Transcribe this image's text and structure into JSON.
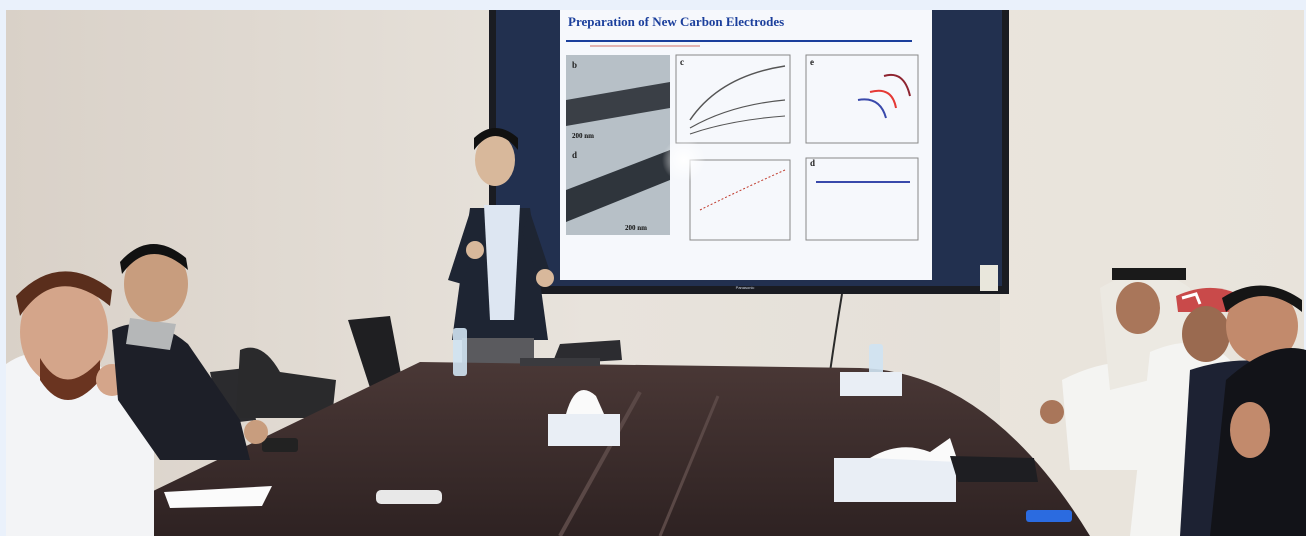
{
  "photo": {
    "slide": {
      "title": "Preparation of New Carbon Electrodes",
      "subtitle": "",
      "panel_letters": [
        "b",
        "c",
        "e",
        "d",
        "d"
      ],
      "scale_bar_1": "200 nm",
      "scale_bar_2": "200 nm",
      "annotation": ""
    },
    "screen_brand": "Panasonic",
    "colors": {
      "wall": "#e4dfd8",
      "table": "#3a2b2a",
      "slide_bg": "#f6f8fc",
      "slide_title": "#1b3f9c",
      "frame": "#1a1c22"
    }
  }
}
